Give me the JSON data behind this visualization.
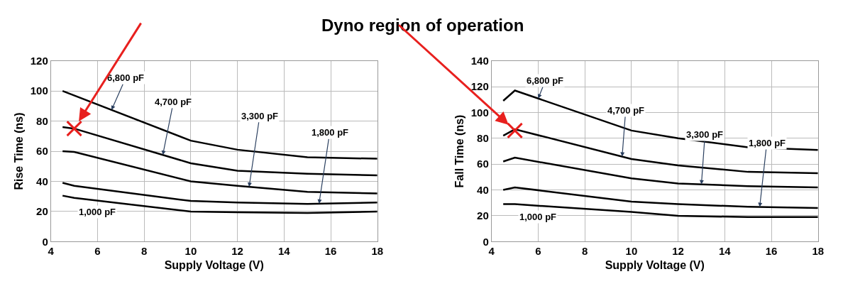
{
  "chart_data": [
    {
      "type": "line",
      "title": "Dyno region of operation",
      "xlabel": "Supply Voltage (V)",
      "ylabel": "Rise Time (ns)",
      "xlim": [
        4,
        18
      ],
      "xticks": [
        4,
        6,
        8,
        10,
        12,
        14,
        16,
        18
      ],
      "ylim": [
        0,
        120
      ],
      "yticks": [
        0,
        20,
        40,
        60,
        80,
        100,
        120
      ],
      "grid": true,
      "legend": false,
      "series": [
        {
          "name": "6,800 pF",
          "color": "#000000",
          "x": [
            4.5,
            10,
            12,
            15,
            18
          ],
          "values": [
            100,
            67,
            61,
            56,
            55
          ]
        },
        {
          "name": "4,700 pF",
          "color": "#000000",
          "x": [
            4.5,
            5,
            10,
            12,
            15,
            18
          ],
          "values": [
            76,
            75,
            52,
            47,
            45,
            44
          ]
        },
        {
          "name": "3,300 pF",
          "color": "#000000",
          "x": [
            4.5,
            5,
            10,
            12,
            15,
            18
          ],
          "values": [
            60,
            59.5,
            40,
            37,
            33,
            32
          ]
        },
        {
          "name": "1,800 pF",
          "color": "#000000",
          "x": [
            4.5,
            5,
            10,
            12,
            15,
            18
          ],
          "values": [
            39,
            37,
            27,
            26,
            25,
            26
          ]
        },
        {
          "name": "1,000 pF",
          "color": "#000000",
          "x": [
            4.5,
            5,
            10,
            12,
            15,
            18
          ],
          "values": [
            30.5,
            29,
            20,
            19.5,
            19,
            20
          ]
        },
        {
          "type": "scatter",
          "color": "#e8201e",
          "marker": "cross",
          "x": [
            5
          ],
          "values": [
            75
          ]
        }
      ]
    },
    {
      "type": "line",
      "xlabel": "Supply Voltage (V)",
      "ylabel": "Fall Time (ns)",
      "xlim": [
        4,
        18
      ],
      "xticks": [
        4,
        6,
        8,
        10,
        12,
        14,
        16,
        18
      ],
      "ylim": [
        0,
        140
      ],
      "yticks": [
        0,
        20,
        40,
        60,
        80,
        100,
        120,
        140
      ],
      "grid": true,
      "legend": false,
      "series": [
        {
          "name": "6,800 pF",
          "color": "#000000",
          "x": [
            4.5,
            5,
            10,
            12,
            15,
            18
          ],
          "values": [
            109,
            117,
            86,
            80,
            73,
            71
          ]
        },
        {
          "name": "4,700 pF",
          "color": "#000000",
          "x": [
            4.5,
            5,
            10,
            12,
            15,
            18
          ],
          "values": [
            82,
            87,
            64,
            59,
            54,
            53
          ]
        },
        {
          "name": "3,300 pF",
          "color": "#000000",
          "x": [
            4.5,
            5,
            10,
            12,
            15,
            18
          ],
          "values": [
            62,
            65,
            49,
            45,
            43,
            42
          ]
        },
        {
          "name": "1,800 pF",
          "color": "#000000",
          "x": [
            4.5,
            5,
            10,
            12,
            15,
            18
          ],
          "values": [
            40,
            42,
            31,
            29,
            27,
            26
          ]
        },
        {
          "name": "1,000 pF",
          "color": "#000000",
          "x": [
            4.5,
            5,
            10,
            12,
            15,
            18
          ],
          "values": [
            29,
            29,
            23,
            20,
            19,
            19
          ]
        },
        {
          "type": "scatter",
          "color": "#e8201e",
          "marker": "cross",
          "x": [
            5
          ],
          "values": [
            86
          ]
        }
      ]
    }
  ]
}
